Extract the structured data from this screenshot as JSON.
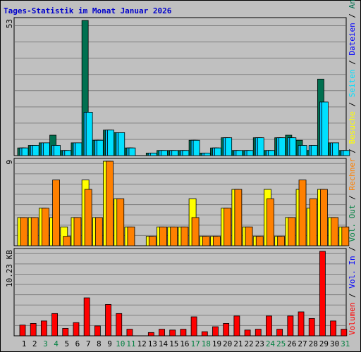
{
  "title": "Tages-Statistik im Monat Januar 2026",
  "colors": {
    "background": "#c0c0c0",
    "grid": "#7f7f7f",
    "title": "#0000cc",
    "hits": "#007050",
    "files": "#00c0ff",
    "pages": "#00e0ff",
    "visits": "#ffff00",
    "sites": "#ff8000",
    "volume": "#ff0000",
    "weekend_label": "#008040",
    "weekday_label": "#000000"
  },
  "chart_data": [
    {
      "type": "bar",
      "name": "hits-pages-panel",
      "ymax_label": "53",
      "ylim": [
        0,
        53
      ],
      "categories": [
        "1",
        "2",
        "3",
        "4",
        "5",
        "6",
        "7",
        "8",
        "9",
        "10",
        "11",
        "12",
        "13",
        "14",
        "15",
        "16",
        "17",
        "18",
        "19",
        "20",
        "21",
        "22",
        "23",
        "24",
        "25",
        "26",
        "27",
        "28",
        "29",
        "30",
        "31"
      ],
      "series": [
        {
          "name": "Anfragen",
          "values": [
            3,
            4,
            5,
            8,
            2,
            5,
            53,
            6,
            10,
            9,
            3,
            0,
            1,
            2,
            2,
            2,
            6,
            1,
            3,
            7,
            2,
            2,
            7,
            2,
            7,
            8,
            6,
            2,
            30,
            5,
            2
          ]
        },
        {
          "name": "Dateien",
          "values": [
            3,
            4,
            5,
            4,
            2,
            5,
            17,
            6,
            10,
            9,
            3,
            0,
            1,
            2,
            2,
            2,
            6,
            1,
            3,
            7,
            2,
            2,
            7,
            2,
            7,
            7,
            4,
            4,
            21,
            5,
            2
          ]
        },
        {
          "name": "Seiten",
          "values": [
            3,
            4,
            5,
            4,
            2,
            5,
            17,
            6,
            10,
            9,
            3,
            0,
            1,
            2,
            2,
            2,
            6,
            1,
            3,
            7,
            2,
            2,
            7,
            2,
            7,
            7,
            4,
            4,
            21,
            5,
            2
          ]
        }
      ]
    },
    {
      "type": "bar",
      "name": "visits-sites-panel",
      "ymax_label": "9",
      "ylim": [
        0,
        9
      ],
      "categories": [
        "1",
        "2",
        "3",
        "4",
        "5",
        "6",
        "7",
        "8",
        "9",
        "10",
        "11",
        "12",
        "13",
        "14",
        "15",
        "16",
        "17",
        "18",
        "19",
        "20",
        "21",
        "22",
        "23",
        "24",
        "25",
        "26",
        "27",
        "28",
        "29",
        "30",
        "31"
      ],
      "series": [
        {
          "name": "Besuche",
          "values": [
            3,
            3,
            4,
            3,
            2,
            3,
            7,
            3,
            9,
            5,
            2,
            0,
            1,
            2,
            2,
            2,
            5,
            1,
            1,
            4,
            6,
            2,
            1,
            6,
            1,
            3,
            6,
            4,
            6,
            3,
            2
          ]
        },
        {
          "name": "Rechner",
          "values": [
            3,
            3,
            4,
            7,
            1,
            3,
            6,
            3,
            9,
            5,
            2,
            0,
            1,
            2,
            2,
            2,
            3,
            1,
            1,
            4,
            6,
            2,
            1,
            5,
            1,
            3,
            7,
            5,
            6,
            3,
            2
          ]
        }
      ]
    },
    {
      "type": "bar",
      "name": "volume-panel",
      "ymax_label": "10.23 KB",
      "ylim": [
        0,
        10.23
      ],
      "categories": [
        "1",
        "2",
        "3",
        "4",
        "5",
        "6",
        "7",
        "8",
        "9",
        "10",
        "11",
        "12",
        "13",
        "14",
        "15",
        "16",
        "17",
        "18",
        "19",
        "20",
        "21",
        "22",
        "23",
        "24",
        "25",
        "26",
        "27",
        "28",
        "29",
        "30",
        "31"
      ],
      "series": [
        {
          "name": "Volumen",
          "values": [
            1.3,
            1.5,
            1.8,
            2.7,
            0.9,
            1.6,
            4.6,
            1.2,
            3.8,
            2.7,
            0.8,
            0,
            0.4,
            0.8,
            0.7,
            0.8,
            2.3,
            0.5,
            1.1,
            1.5,
            2.4,
            0.7,
            0.8,
            2.4,
            0.8,
            2.4,
            2.9,
            2.1,
            10.23,
            1.8,
            0.8
          ]
        }
      ]
    }
  ],
  "right_legend": [
    {
      "text": "Volumen",
      "color": "#ff0000"
    },
    {
      "text": " / ",
      "color": "#000000"
    },
    {
      "text": "Vol. In",
      "color": "#0000ff"
    },
    {
      "text": " / ",
      "color": "#000000"
    },
    {
      "text": "Vol. Out",
      "color": "#008040"
    },
    {
      "text": " / ",
      "color": "#000000"
    },
    {
      "text": "Rechner",
      "color": "#ff8000"
    },
    {
      "text": " / ",
      "color": "#000000"
    },
    {
      "text": "Besuche",
      "color": "#ffff00"
    },
    {
      "text": " / ",
      "color": "#000000"
    },
    {
      "text": "Seiten",
      "color": "#00e0ff"
    },
    {
      "text": " / ",
      "color": "#000000"
    },
    {
      "text": "Dateien",
      "color": "#0000ff"
    },
    {
      "text": " / ",
      "color": "#000000"
    },
    {
      "text": "Anfragen",
      "color": "#007050"
    }
  ],
  "day_labels": [
    {
      "text": "1",
      "weekend": false
    },
    {
      "text": "2",
      "weekend": false
    },
    {
      "text": "3",
      "weekend": true
    },
    {
      "text": "4",
      "weekend": true
    },
    {
      "text": "5",
      "weekend": false
    },
    {
      "text": "6",
      "weekend": false
    },
    {
      "text": "7",
      "weekend": false
    },
    {
      "text": "8",
      "weekend": false
    },
    {
      "text": "9",
      "weekend": false
    },
    {
      "text": "10",
      "weekend": true
    },
    {
      "text": "11",
      "weekend": true
    },
    {
      "text": "12",
      "weekend": false
    },
    {
      "text": "13",
      "weekend": false
    },
    {
      "text": "14",
      "weekend": false
    },
    {
      "text": "15",
      "weekend": false
    },
    {
      "text": "16",
      "weekend": false
    },
    {
      "text": "17",
      "weekend": true
    },
    {
      "text": "18",
      "weekend": true
    },
    {
      "text": "19",
      "weekend": false
    },
    {
      "text": "20",
      "weekend": false
    },
    {
      "text": "21",
      "weekend": false
    },
    {
      "text": "22",
      "weekend": false
    },
    {
      "text": "23",
      "weekend": false
    },
    {
      "text": "24",
      "weekend": true
    },
    {
      "text": "25",
      "weekend": true
    },
    {
      "text": "26",
      "weekend": false
    },
    {
      "text": "27",
      "weekend": false
    },
    {
      "text": "28",
      "weekend": false
    },
    {
      "text": "29",
      "weekend": false
    },
    {
      "text": "30",
      "weekend": false
    },
    {
      "text": "31",
      "weekend": true
    }
  ]
}
